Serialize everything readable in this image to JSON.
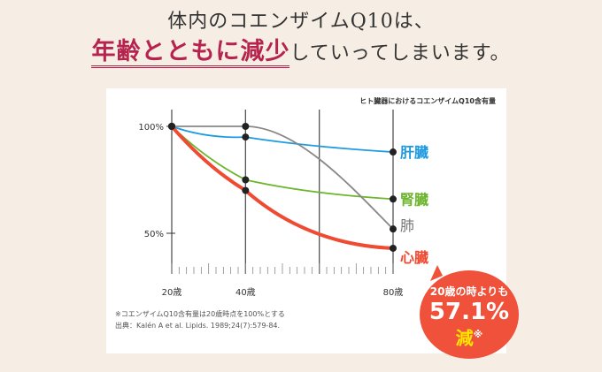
{
  "heading": {
    "line1": "体内のコエンザイムQ10は、",
    "emphasis": "年齢とともに減少",
    "line2_rest": "していってしまいます。"
  },
  "chart_data": {
    "type": "line",
    "title": "ヒト臓器におけるコエンザイムQ10含有量",
    "x": [
      20,
      40,
      80
    ],
    "x_tick_labels": [
      "20歳",
      "40歳",
      "80歳"
    ],
    "xlim": [
      20,
      80
    ],
    "y_tick_labels": [
      "100%",
      "50%"
    ],
    "y_ticks": [
      100,
      50
    ],
    "grid_x": [
      20,
      40,
      60,
      80
    ],
    "series": [
      {
        "name": "肝臓",
        "values": [
          100,
          95,
          88
        ],
        "color": "#1e9be0"
      },
      {
        "name": "腎臓",
        "values": [
          100,
          75,
          66
        ],
        "color": "#6cb52d"
      },
      {
        "name": "肺",
        "values": [
          100,
          100,
          52
        ],
        "color": "#888888"
      },
      {
        "name": "心臓",
        "values": [
          100,
          70,
          43
        ],
        "color": "#ee4b32"
      }
    ]
  },
  "notes": {
    "line1": "※コエンザイムQ10含有量は20歳時点を100%とする",
    "line2": "出典：Kalén A et al. Lipids. 1989;24(7):579-84."
  },
  "callout": {
    "line1": "20歳の時よりも",
    "value": "57.1%",
    "word": "減",
    "mark": "※",
    "color": "#f0513a"
  }
}
